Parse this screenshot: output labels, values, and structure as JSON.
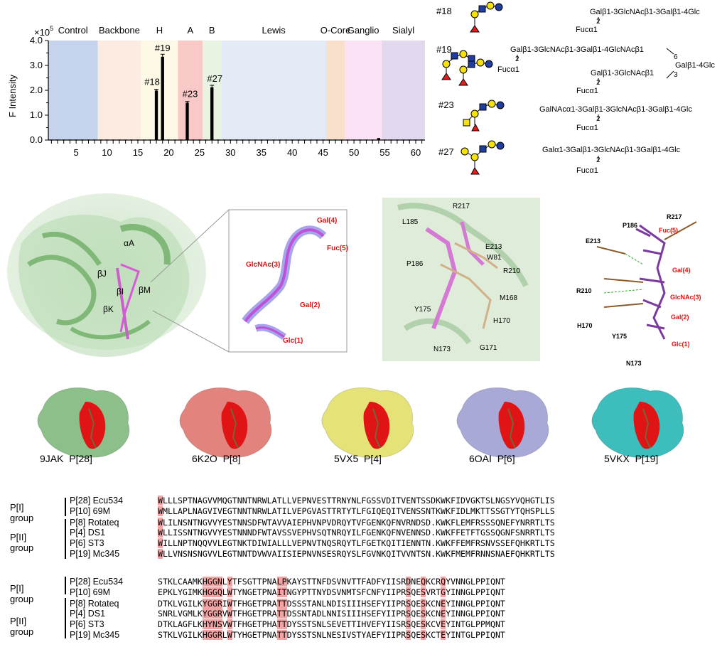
{
  "chart_data": {
    "type": "bar",
    "ylabel": "F Intensity",
    "y_exponent": "×10",
    "y_exponent_power": "5",
    "yticks": [
      "0.0",
      "1.0",
      "2.0",
      "3.0",
      "4.0"
    ],
    "ylim": [
      0,
      4.0
    ],
    "xticks": [
      "5",
      "10",
      "15",
      "20",
      "25",
      "30",
      "35",
      "40",
      "45",
      "50",
      "55",
      "60"
    ],
    "xlim": [
      0.5,
      61.5
    ],
    "groups": [
      {
        "name": "Control",
        "start": 0.5,
        "end": 8.5,
        "color": "#c5d3ec"
      },
      {
        "name": "Backbone",
        "start": 8.5,
        "end": 15.5,
        "color": "#fbebe1"
      },
      {
        "name": "H",
        "start": 15.5,
        "end": 21.5,
        "color": "#fef8e6"
      },
      {
        "name": "A",
        "start": 21.5,
        "end": 25.5,
        "color": "#f9c9c7"
      },
      {
        "name": "B",
        "start": 25.5,
        "end": 28.5,
        "color": "#e8f3e2"
      },
      {
        "name": "Lewis",
        "start": 28.5,
        "end": 45.5,
        "color": "#e4eaf6"
      },
      {
        "name": "O-Core",
        "start": 45.5,
        "end": 48.5,
        "color": "#f9e0cc"
      },
      {
        "name": "Ganglio",
        "start": 48.5,
        "end": 54.5,
        "color": "#fbe3f5"
      },
      {
        "name": "Sialyl",
        "start": 54.5,
        "end": 61.5,
        "color": "#e3d9ee"
      }
    ],
    "values": [
      0.02,
      0.02,
      0.02,
      0.02,
      0.02,
      0.02,
      0.02,
      0.02,
      0.02,
      0.02,
      0.02,
      0.02,
      0.02,
      0.02,
      0.02,
      0.02,
      0.02,
      1.99,
      3.35,
      0.02,
      0.02,
      0.02,
      1.5,
      0.02,
      0.02,
      0.02,
      2.12,
      0.02,
      0.02,
      0.02,
      0.02,
      0.02,
      0.02,
      0.02,
      0.02,
      0.02,
      0.02,
      0.02,
      0.02,
      0.02,
      0.02,
      0.02,
      0.02,
      0.02,
      0.02,
      0.02,
      0.02,
      0.02,
      0.02,
      0.02,
      0.02,
      0.02,
      0.02,
      0.08,
      0.02,
      0.02,
      0.02,
      0.02,
      0.02,
      0.02,
      0.02
    ],
    "errors": {
      "18": 0.05,
      "19": 0.1,
      "23": 0.05,
      "27": 0.08
    },
    "bar_labels": [
      {
        "x": 18,
        "label": "#18"
      },
      {
        "x": 19,
        "label": "#19"
      },
      {
        "x": 23,
        "label": "#23"
      },
      {
        "x": 27,
        "label": "#27"
      }
    ]
  },
  "glycans": [
    {
      "id": "#18",
      "line1": "Galβ1-3GlcNAcβ1-3Galβ1-4Glc",
      "link": "2",
      "fuc": "Fucα1"
    },
    {
      "id": "#19",
      "line1": "Galβ1-3GlcNAcβ1-3Galβ1-4GlcNAcβ1",
      "link1": "2",
      "fuc1": "Fucα1",
      "link6": "6",
      "line_main": "Galβ1-4Glc",
      "link3": "3",
      "line2": "Galβ1-3GlcNAcβ1",
      "link2": "2",
      "fuc2": "Fucα1"
    },
    {
      "id": "#23",
      "line1": "GalNAcα1-3Galβ1-3GlcNAcβ1-3Galβ1-4Glc",
      "link": "2",
      "fuc": "Fucα1"
    },
    {
      "id": "#27",
      "line1": "Galα1-3Galβ1-3GlcNAcβ1-3Galβ1-4Glc",
      "link": "2",
      "fuc": "Fucα1"
    }
  ],
  "structure": {
    "labels": [
      "αA",
      "βJ",
      "βI",
      "βM",
      "βK"
    ],
    "density_labels": [
      "Gal(4)",
      "Fuc(5)",
      "GlcNAc(3)",
      "Gal(2)",
      "Glc(1)"
    ],
    "residues_panel": [
      "R217",
      "L185",
      "E213",
      "W81",
      "P186",
      "R210",
      "M168",
      "Y175",
      "H170",
      "N173",
      "G171"
    ],
    "ligplot": {
      "residues": [
        "R217",
        "P186",
        "E213",
        "R210",
        "H170",
        "Y175",
        "N173"
      ],
      "sugars": [
        "Fuc(5)",
        "Gal(4)",
        "GlcNAc(3)",
        "Gal(2)",
        "Glc(1)"
      ]
    }
  },
  "surfaces": [
    {
      "pdb": "9JAK",
      "ptype": "P[28]",
      "color": "#8dbf8a"
    },
    {
      "pdb": "6K2O",
      "ptype": "P[8]",
      "color": "#e2837d"
    },
    {
      "pdb": "5VX5",
      "ptype": "P[4]",
      "color": "#e5e377"
    },
    {
      "pdb": "6OAI",
      "ptype": "P[6]",
      "color": "#a9a9d8"
    },
    {
      "pdb": "5VKX",
      "ptype": "P[19]",
      "color": "#3ebdbd"
    }
  ],
  "alignment": {
    "group1": "P[I] group",
    "group2": "P[II] group",
    "block1": [
      {
        "name": "P[28] Ecu534",
        "seq": "WLLLSPTNAGVVMQGTNNTNRWLATLLVEPNVESTTRNYNLFGSSVDITVENTSSDKWKFIDVGKTSLNGSYVQHGTLIS"
      },
      {
        "name": "P[10] 69M",
        "seq": "WMLLAPLNAGVIVEGTNNTNRWLATILVEPGVASTTRTYTLFGIQEQITVENSSNTKWKFIDLMKTTSSGTYTQHSPLLS"
      },
      {
        "name": "P[8] Rotateq",
        "seq": "WLILNSNTNGVVYESTNNSDFWTAVVAIEPHVNPVDRQYTVFGENKQFNVRNDSD.KWKFLEMFRSSSQNEFYNRRTLTS"
      },
      {
        "name": "P[4] DS1",
        "seq": "WLLISSNTNGVVYESTNNNDFWTAVSSVEPHVSQTNRQYILFGENKQFNVENNSD.KWKFFETFTGSSQGNFSNRRTLTS"
      },
      {
        "name": "P[6] ST3",
        "seq": "WILLNPTNQQVVLEGTNKTDIWIALLLVEPNVTNQSRQYTLFGETKQITIENNTN.KWKFFEMFRSNVSSEFQHKRTLTS"
      },
      {
        "name": "P[19] Mc345",
        "seq": "WLLVNSNSNGVVLEGTNNTDVWVAIISIEPNVNSESRQYSLFGVNKQITVVNTSN.KWKFMEMFRNNSNAEFQHKRTLTS"
      }
    ],
    "block2": [
      {
        "name": "P[28] Ecu534",
        "seq": "STKLCAAMKHGGNLYTFSGTTPNALPKAYSTTNFDSVNVTTFADFYIISRDNEQKCRQYVNNGLPPIQNT"
      },
      {
        "name": "P[10] 69M",
        "seq": "EPKLYGIMKHGGQLWTYNGETPNAITNGYPTTNYDSVNMTSFCNFYIIPRSQESVRTGYINNGLPPIQNT"
      },
      {
        "name": "P[8] Rotateq",
        "seq": "DTKLVGILKYGGRIWTFHGETPRATTDSSSTANLNDISIIIHSEFYIIPRSQESKCNEYINNGLPPIQNT"
      },
      {
        "name": "P[4] DS1",
        "seq": "SNRLVGMLKYGGRVWTFHGETPRATTDSSNTADLNNISIIIHSEFYIIPRSQESKCNEYINNGLPPIQNT"
      },
      {
        "name": "P[6] ST3",
        "seq": "DTKLAGFLKHYNSVWTFHGETPHATTDYSSTSNLSEVETTIHVEFYIISRSQESKCVEYINTGLPPMQNT"
      },
      {
        "name": "P[19] Mc345",
        "seq": "STKLVGILKHGGRLWTYHGETPNATTDYSSTSNLNESIVSTYAEFYIIPRSQESKCTEYINTGLPPIQNT"
      }
    ],
    "hl1": [
      0
    ],
    "hl2": [
      9,
      10,
      11,
      12,
      14,
      24,
      25,
      50,
      53,
      57
    ]
  }
}
